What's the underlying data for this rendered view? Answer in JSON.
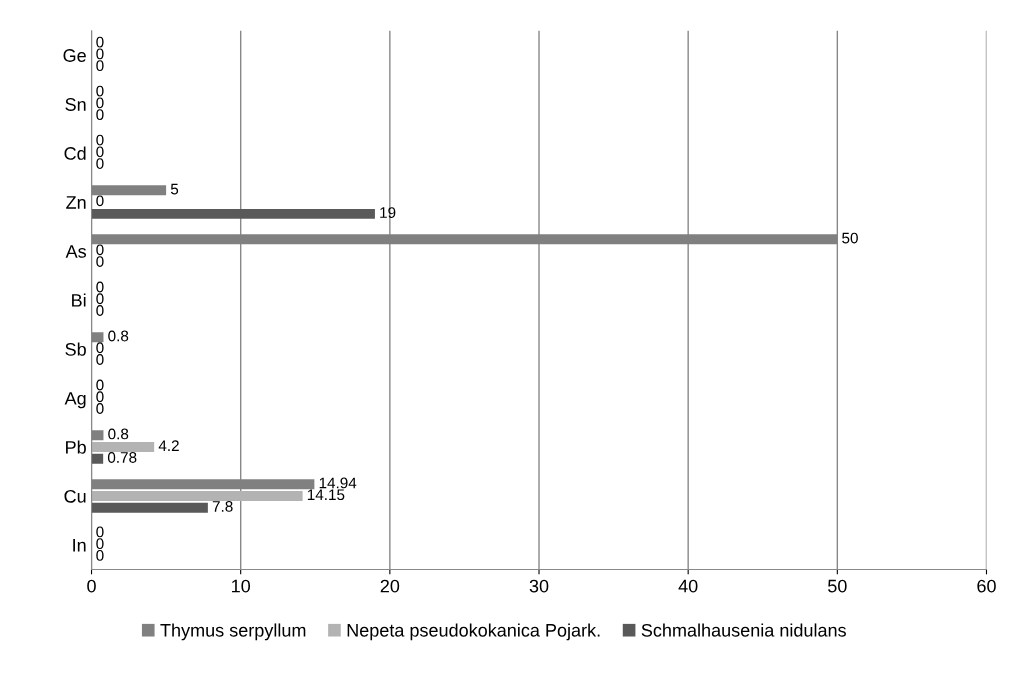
{
  "chart_data": {
    "type": "bar",
    "orientation": "horizontal",
    "categories": [
      "Ge",
      "Sn",
      "Cd",
      "Zn",
      "As",
      "Bi",
      "Sb",
      "Ag",
      "Pb",
      "Cu",
      "In"
    ],
    "series": [
      {
        "name": "Thymus serpyllum",
        "color": "#808080",
        "values": [
          0,
          0,
          0,
          5,
          50,
          0,
          0.8,
          0,
          0.8,
          14.94,
          0
        ]
      },
      {
        "name": "Nepeta pseudokokanica Pojark.",
        "color": "#b3b3b3",
        "values": [
          0,
          0,
          0,
          0,
          0,
          0,
          0,
          0,
          4.2,
          14.15,
          0
        ]
      },
      {
        "name": "Schmalhausenia nidulans",
        "color": "#595959",
        "values": [
          0,
          0,
          0,
          19,
          0,
          0,
          0,
          0,
          0.78,
          7.8,
          0
        ]
      }
    ],
    "xlim": [
      0,
      60
    ],
    "xticks": [
      0,
      10,
      20,
      30,
      40,
      50,
      60
    ],
    "grid": "x",
    "legend": "bottom",
    "data_labels": true
  }
}
